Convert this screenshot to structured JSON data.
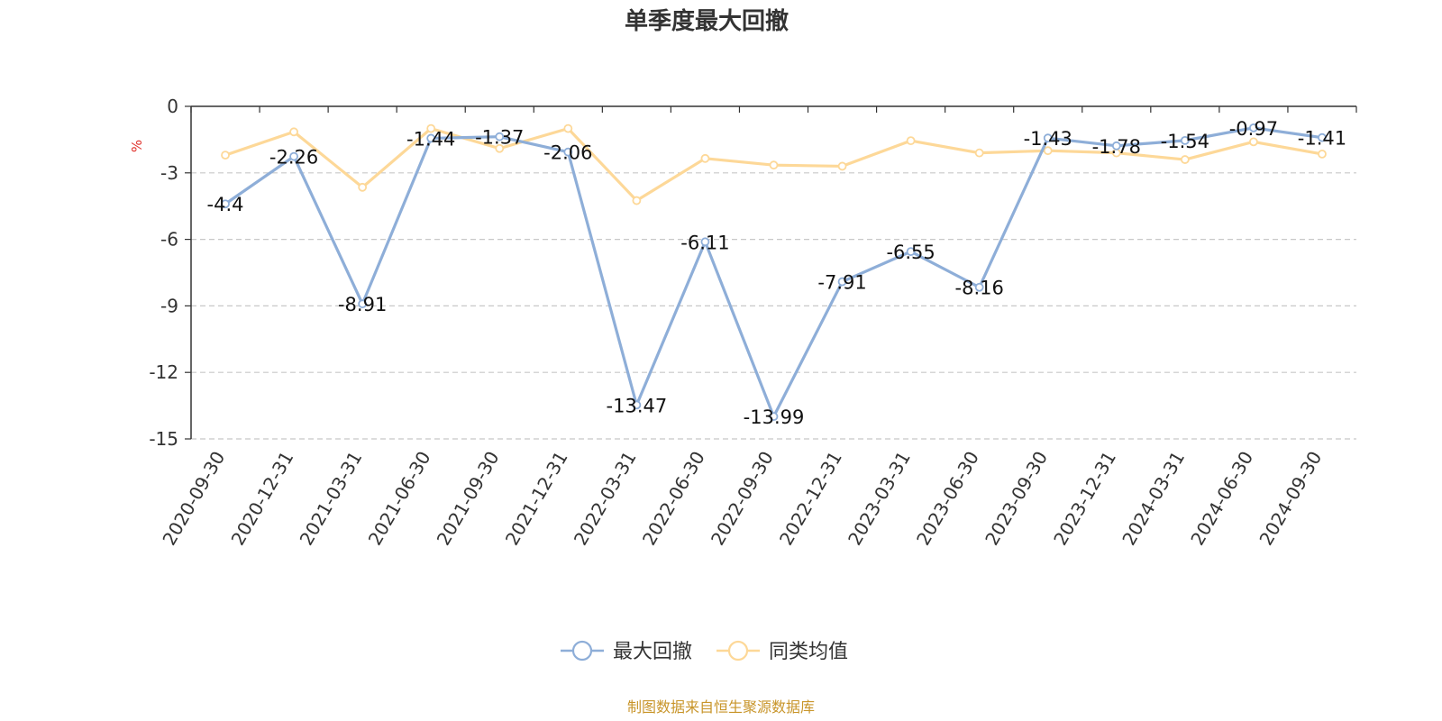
{
  "chart_data": {
    "type": "line",
    "title": "单季度最大回撤",
    "ylabel": "%",
    "ylim": [
      -15,
      0
    ],
    "yticks": [
      0,
      -3,
      -6,
      -9,
      -12,
      -15
    ],
    "grid": true,
    "legend_position": "bottom",
    "categories": [
      "2020-09-30",
      "2020-12-31",
      "2021-03-31",
      "2021-06-30",
      "2021-09-30",
      "2021-12-31",
      "2022-03-31",
      "2022-06-30",
      "2022-09-30",
      "2022-12-31",
      "2023-03-31",
      "2023-06-30",
      "2023-09-30",
      "2023-12-31",
      "2024-03-31",
      "2024-06-30",
      "2024-09-30"
    ],
    "series": [
      {
        "name": "最大回撤",
        "color": "#8eaed8",
        "values": [
          -4.4,
          -2.26,
          -8.91,
          -1.44,
          -1.37,
          -2.06,
          -13.47,
          -6.11,
          -13.99,
          -7.91,
          -6.55,
          -8.16,
          -1.43,
          -1.78,
          -1.54,
          -0.97,
          -1.41
        ],
        "labels": [
          "-4.4",
          "-2.26",
          "-8.91",
          "-1.44",
          "-1.37",
          "-2.06",
          "-13.47",
          "-6.11",
          "-13.99",
          "-7.91",
          "-6.55",
          "-8.16",
          "-1.43",
          "-1.78",
          "-1.54",
          "-0.97",
          "-1.41"
        ]
      },
      {
        "name": "同类均值",
        "color": "#fdd898",
        "values": [
          -2.2,
          -1.15,
          -3.65,
          -1.0,
          -1.9,
          -1.0,
          -4.25,
          -2.35,
          -2.65,
          -2.7,
          -1.55,
          -2.1,
          -2.0,
          -2.1,
          -2.4,
          -1.6,
          -2.15
        ]
      }
    ],
    "source": "制图数据来自恒生聚源数据库"
  }
}
